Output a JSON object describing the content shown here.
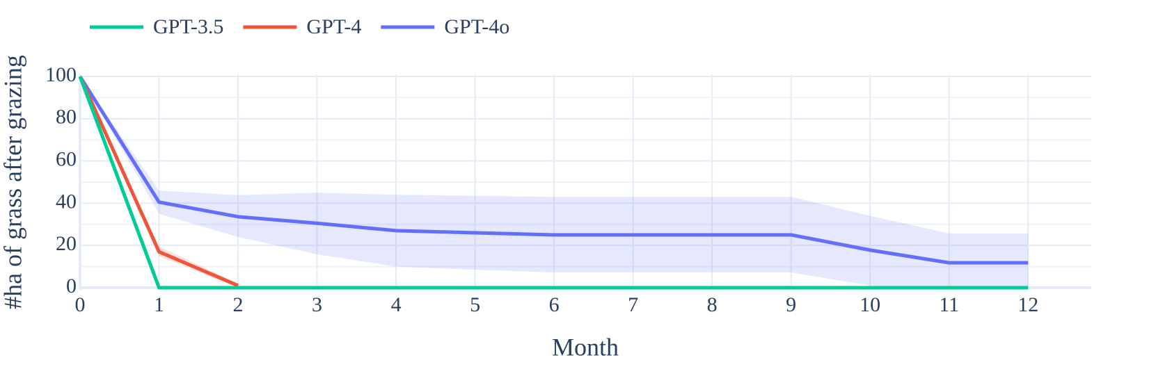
{
  "chart_data": {
    "type": "line",
    "x_label": "Month",
    "y_label": "#ha of grass after grazing",
    "x": [
      0,
      1,
      2,
      3,
      4,
      5,
      6,
      7,
      8,
      9,
      10,
      11,
      12
    ],
    "xlim": [
      0,
      12.8
    ],
    "xticks": [
      0,
      1,
      2,
      3,
      4,
      5,
      6,
      7,
      8,
      9,
      10,
      11,
      12
    ],
    "ylim": [
      -1,
      101
    ],
    "yticks": [
      0,
      20,
      40,
      60,
      80,
      100
    ],
    "y_minor_grid": [
      10,
      30,
      50,
      70,
      90
    ],
    "grid": true,
    "legend": "top-left",
    "series": [
      {
        "name": "GPT-3.5",
        "color": "#00cc96",
        "values": [
          100,
          0,
          0,
          0,
          0,
          0,
          0,
          0,
          0,
          0,
          0,
          0,
          0
        ]
      },
      {
        "name": "GPT-4",
        "color": "#EF553B",
        "values": [
          100,
          17,
          1,
          null,
          null,
          null,
          null,
          null,
          null,
          null,
          null,
          null,
          null
        ],
        "upper": [
          100,
          19.5,
          2,
          null,
          null,
          null,
          null,
          null,
          null,
          null,
          null,
          null,
          null
        ],
        "lower": [
          100,
          15,
          0,
          null,
          null,
          null,
          null,
          null,
          null,
          null,
          null,
          null,
          null
        ]
      },
      {
        "name": "GPT-4o",
        "color": "#636efa",
        "values": [
          100,
          40.5,
          33.6,
          30.5,
          27,
          26,
          25,
          25,
          25,
          25,
          17.8,
          11.8,
          11.8
        ],
        "upper": [
          100,
          46,
          43.8,
          45,
          44,
          43.5,
          43,
          43,
          43,
          43,
          34,
          25.7,
          25.7
        ],
        "lower": [
          100,
          35,
          24,
          15.8,
          10,
          8.5,
          7.2,
          7.2,
          7.2,
          7.2,
          1,
          0,
          0
        ]
      }
    ]
  }
}
